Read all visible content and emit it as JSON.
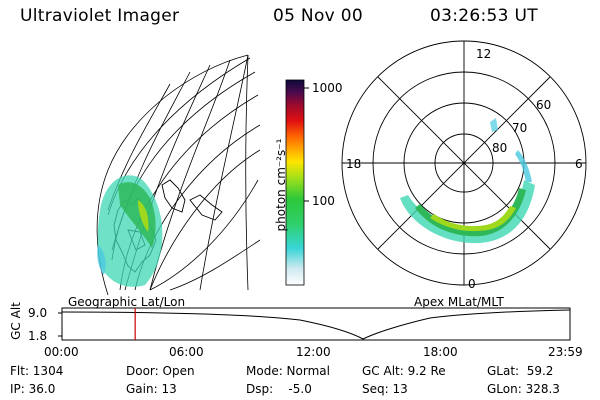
{
  "header": {
    "title": "Ultraviolet Imager",
    "date": "05 Nov 00",
    "time": "03:26:53 UT"
  },
  "colorbar": {
    "unit_label": "photon cm⁻²s⁻¹",
    "tick_high": "1000",
    "tick_low": "100"
  },
  "maps": {
    "left_caption": "Geographic Lat/Lon",
    "right_caption": "Apex MLat/MLT",
    "polar_mlt_labels": {
      "top": "12",
      "left": "18",
      "right": "6",
      "bottom": "0"
    },
    "polar_lat_labels": [
      "60",
      "70",
      "80"
    ]
  },
  "timeline": {
    "axis_label": "GC Alt",
    "y_ticks": [
      "9.0",
      "1.8"
    ],
    "time_ticks": [
      "00:00",
      "06:00",
      "12:00",
      "18:00",
      "23:59"
    ],
    "marker_color": "#cc0000",
    "current_time_fraction": 0.144
  },
  "info": {
    "flt": "Flt: 1304",
    "ip": "IP: 36.0",
    "door": "Door: Open",
    "gain": "Gain: 13",
    "mode": "Mode: Normal",
    "dsp": "Dsp:    -5.0",
    "gc_alt": "GC Alt: 9.2 Re",
    "seq": "Seq: 13",
    "glat": "GLat:  59.2",
    "glon": "GLon: 328.3"
  }
}
